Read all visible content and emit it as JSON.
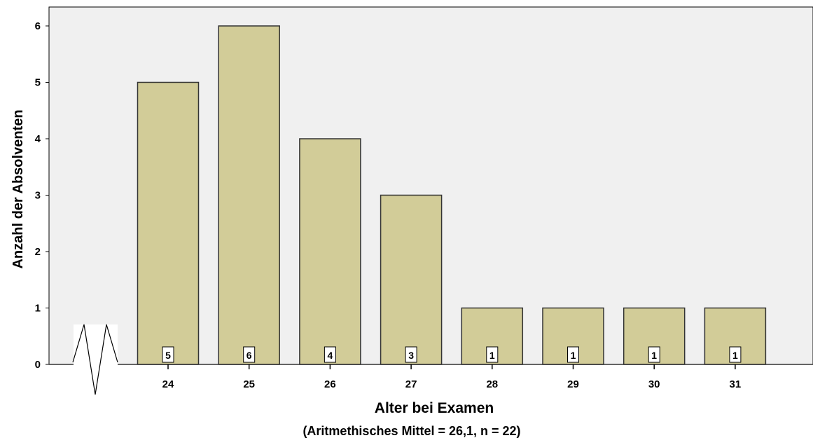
{
  "chart_data": {
    "type": "bar",
    "categories": [
      "24",
      "25",
      "26",
      "27",
      "28",
      "29",
      "30",
      "31"
    ],
    "values": [
      5,
      6,
      4,
      3,
      1,
      1,
      1,
      1
    ],
    "data_labels": [
      "5",
      "6",
      "4",
      "3",
      "1",
      "1",
      "1",
      "1"
    ],
    "xlabel": "Alter bei Examen",
    "xlabel_sub": "(Aritmethisches Mittel = 26,1, n = 22)",
    "ylabel": "Anzahl der Absolventen",
    "ylim": [
      0,
      6
    ],
    "yticks": [
      "0",
      "1",
      "2",
      "3",
      "4",
      "5",
      "6"
    ],
    "axis_break": true,
    "grid": false,
    "colors": {
      "bar_fill": "#d2cc98",
      "bar_stroke": "#333333",
      "plot_background": "#f0f0f0"
    }
  }
}
